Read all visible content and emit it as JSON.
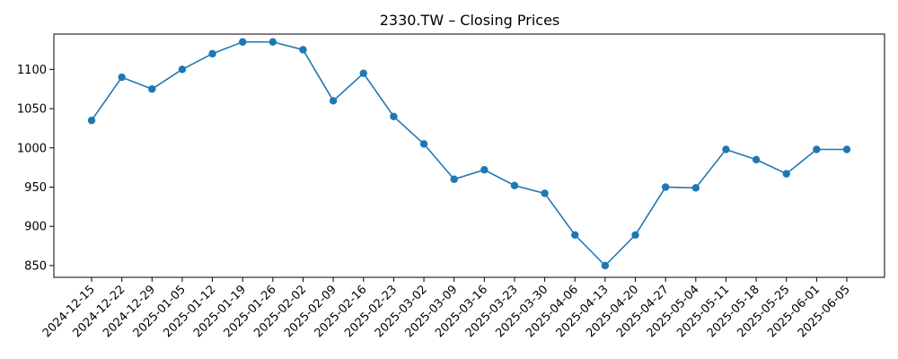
{
  "chart_data": {
    "type": "line",
    "title": "2330.TW – Closing Prices",
    "xlabel": "",
    "ylabel": "",
    "x": [
      "2024-12-15",
      "2024-12-22",
      "2024-12-29",
      "2025-01-05",
      "2025-01-12",
      "2025-01-19",
      "2025-01-26",
      "2025-02-02",
      "2025-02-09",
      "2025-02-16",
      "2025-02-23",
      "2025-03-02",
      "2025-03-09",
      "2025-03-16",
      "2025-03-23",
      "2025-03-30",
      "2025-04-06",
      "2025-04-13",
      "2025-04-20",
      "2025-04-27",
      "2025-05-04",
      "2025-05-11",
      "2025-05-18",
      "2025-05-25",
      "2025-06-01",
      "2025-06-05"
    ],
    "series": [
      {
        "name": "",
        "color": "#1f77b4",
        "values": [
          1035,
          1090,
          1075,
          1100,
          1120,
          1135,
          1135,
          1125,
          1060,
          1095,
          1040,
          1005,
          960,
          972,
          952,
          942,
          889,
          850,
          889,
          950,
          949,
          998,
          985,
          967,
          998,
          998
        ]
      }
    ],
    "yticks": [
      850,
      900,
      950,
      1000,
      1050,
      1100
    ],
    "ylim": [
      835,
      1145
    ],
    "grid": false,
    "legend": "none"
  }
}
